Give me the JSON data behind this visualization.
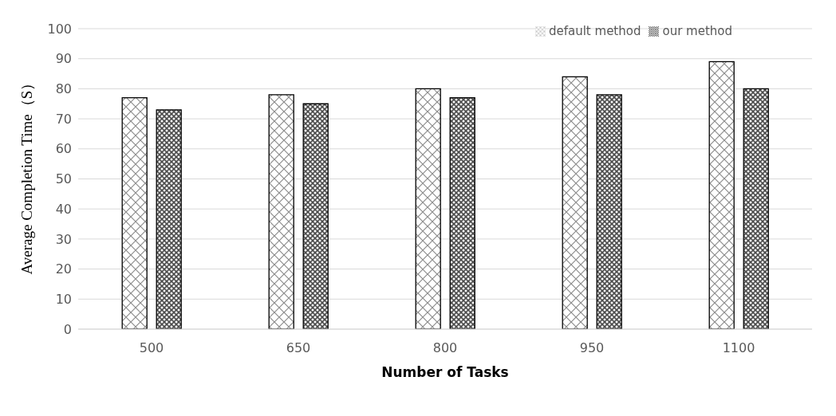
{
  "chart_data": {
    "type": "bar",
    "xlabel": "Number of Tasks",
    "ylabel": "Average Completion Time（S）",
    "categories": [
      "500",
      "650",
      "800",
      "950",
      "1100"
    ],
    "series": [
      {
        "name": "default method",
        "color": "#000000",
        "values": [
          77,
          78,
          80,
          84,
          89
        ]
      },
      {
        "name": "our method",
        "color": "#000000",
        "values": [
          73,
          75,
          77,
          78,
          80
        ]
      }
    ],
    "ylim": [
      0,
      100
    ],
    "yticks": [
      0,
      10,
      20,
      30,
      40,
      50,
      60,
      70,
      80,
      90,
      100
    ],
    "grid": "y",
    "legend": "top right"
  }
}
